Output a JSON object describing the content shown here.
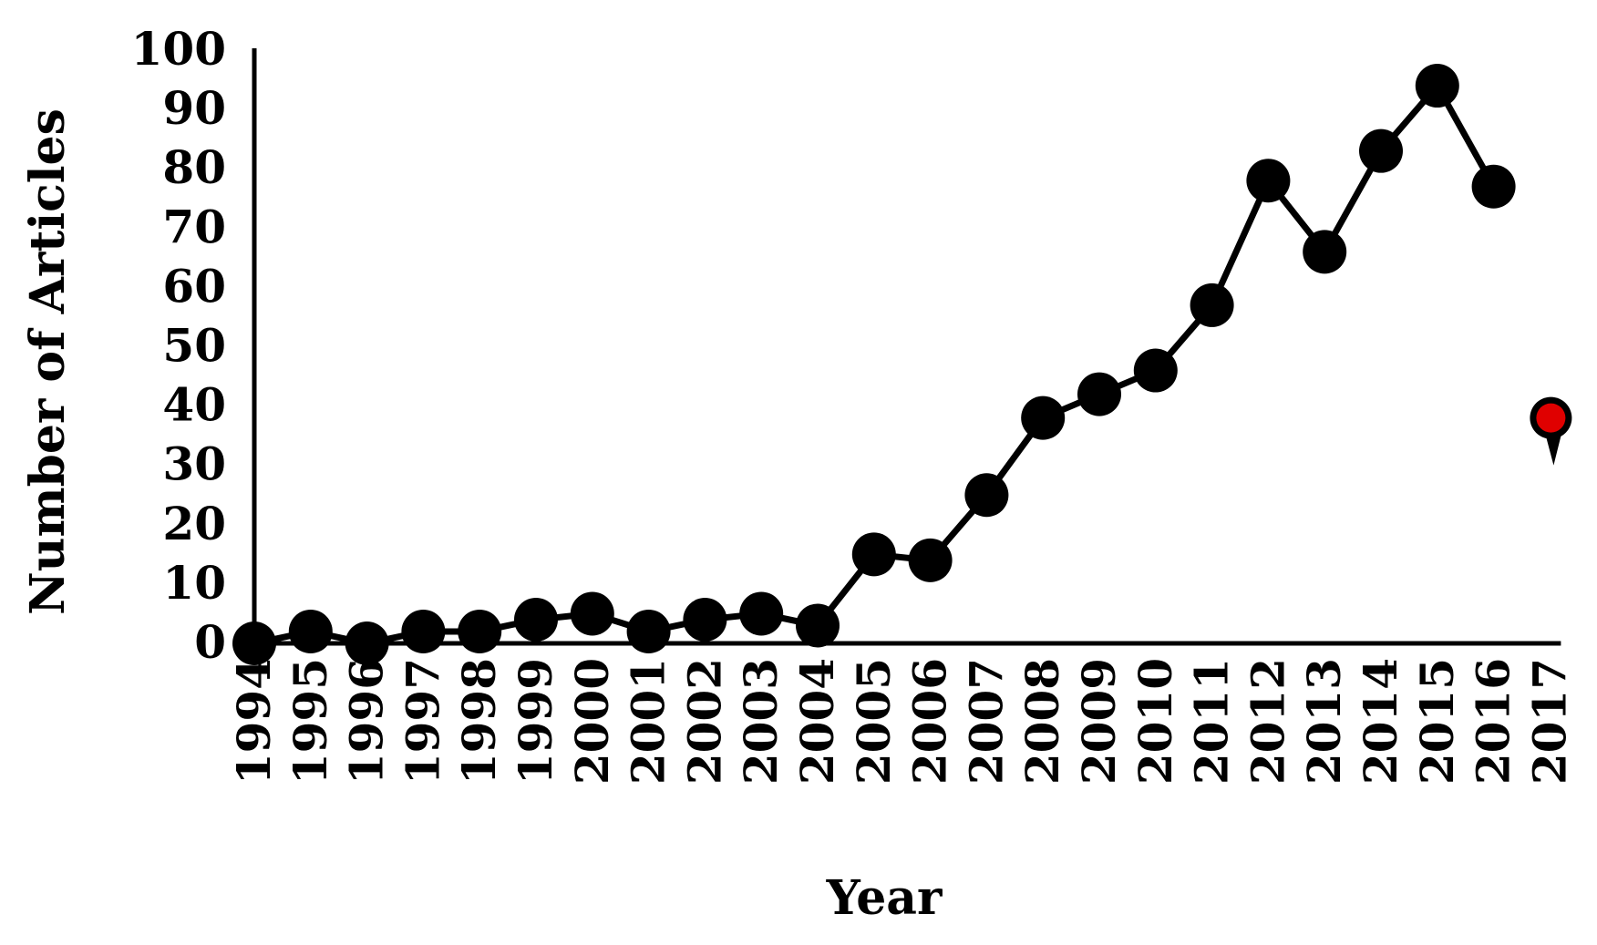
{
  "chart_data": {
    "type": "line",
    "title": "",
    "xlabel": "Year",
    "ylabel": "Number of Articles",
    "ylim": [
      0,
      100
    ],
    "yticks": [
      0,
      10,
      20,
      30,
      40,
      50,
      60,
      70,
      80,
      90,
      100
    ],
    "grid": false,
    "categories": [
      "1994",
      "1995",
      "1996",
      "1997",
      "1998",
      "1999",
      "2000",
      "2001",
      "2002",
      "2003",
      "2004",
      "2005",
      "2006",
      "2007",
      "2008",
      "2009",
      "2010",
      "2011",
      "2012",
      "2013",
      "2014",
      "2015",
      "2016",
      "2017"
    ],
    "series": [
      {
        "values": [
          0,
          2,
          0,
          2,
          2,
          4,
          5,
          2,
          4,
          5,
          3,
          15,
          14,
          25,
          38,
          42,
          46,
          57,
          78,
          66,
          83,
          94,
          77,
          null
        ],
        "color": "#000000"
      }
    ],
    "highlight": {
      "category": "2017",
      "value": 38,
      "color": "#e00000",
      "icon": "map-pin-icon"
    }
  }
}
